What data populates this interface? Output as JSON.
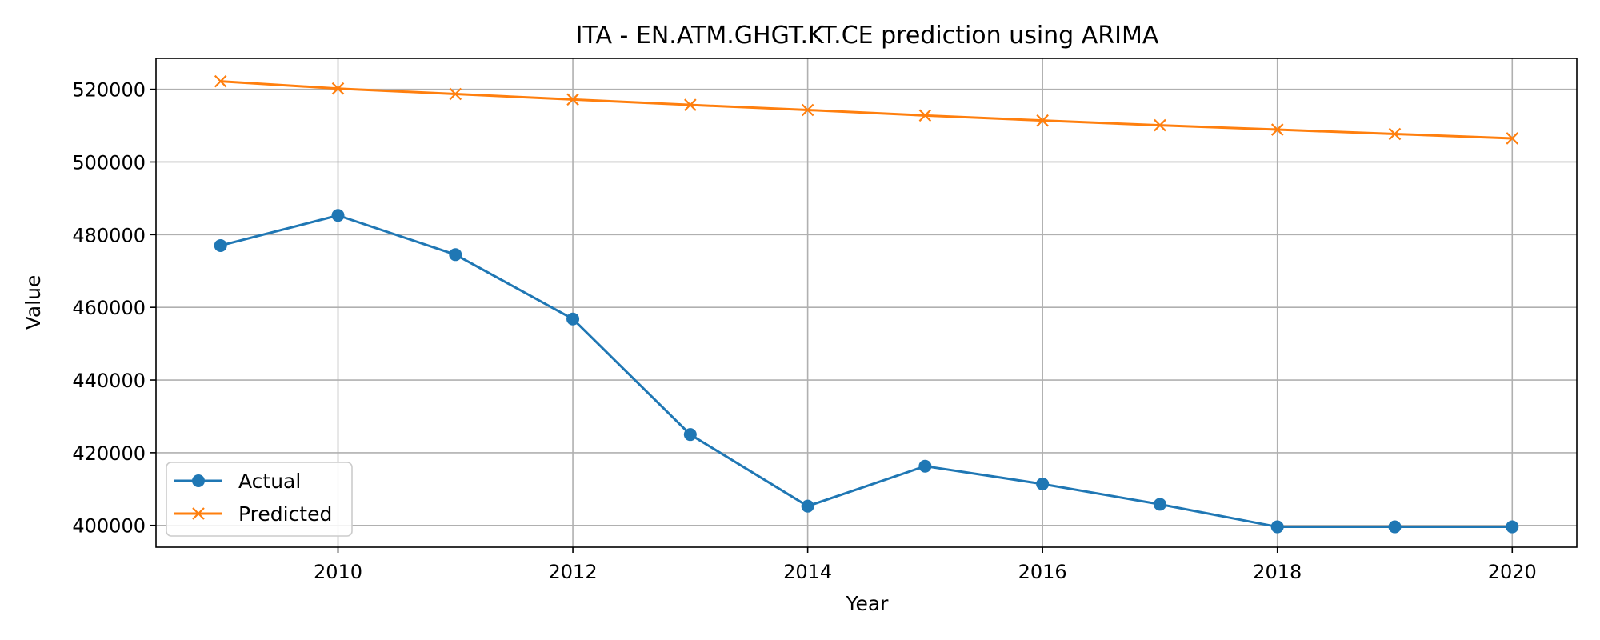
{
  "chart_data": {
    "type": "line",
    "title": "ITA - EN.ATM.GHGT.KT.CE prediction using ARIMA",
    "xlabel": "Year",
    "ylabel": "Value",
    "x": [
      2009,
      2010,
      2011,
      2012,
      2013,
      2014,
      2015,
      2016,
      2017,
      2018,
      2019,
      2020
    ],
    "xlim": [
      2008.45,
      2020.55
    ],
    "ylim": [
      394000,
      528500
    ],
    "x_ticks": [
      2010,
      2012,
      2014,
      2016,
      2018,
      2020
    ],
    "x_tick_labels": [
      "2010",
      "2012",
      "2014",
      "2016",
      "2018",
      "2020"
    ],
    "y_ticks": [
      400000,
      420000,
      440000,
      460000,
      480000,
      500000,
      520000
    ],
    "y_tick_labels": [
      "400000",
      "420000",
      "440000",
      "460000",
      "480000",
      "500000",
      "520000"
    ],
    "grid": true,
    "legend_position": "lower-left",
    "series": [
      {
        "name": "Actual",
        "marker": "circle",
        "color": "#1f77b4",
        "values": [
          477000,
          485300,
          474500,
          456800,
          425000,
          405300,
          416300,
          411400,
          405800,
          399600,
          399600,
          399600
        ]
      },
      {
        "name": "Predicted",
        "marker": "x",
        "color": "#ff7f0e",
        "values": [
          522200,
          520200,
          518700,
          517200,
          515700,
          514300,
          512800,
          511400,
          510100,
          508900,
          507700,
          506500
        ]
      }
    ]
  }
}
